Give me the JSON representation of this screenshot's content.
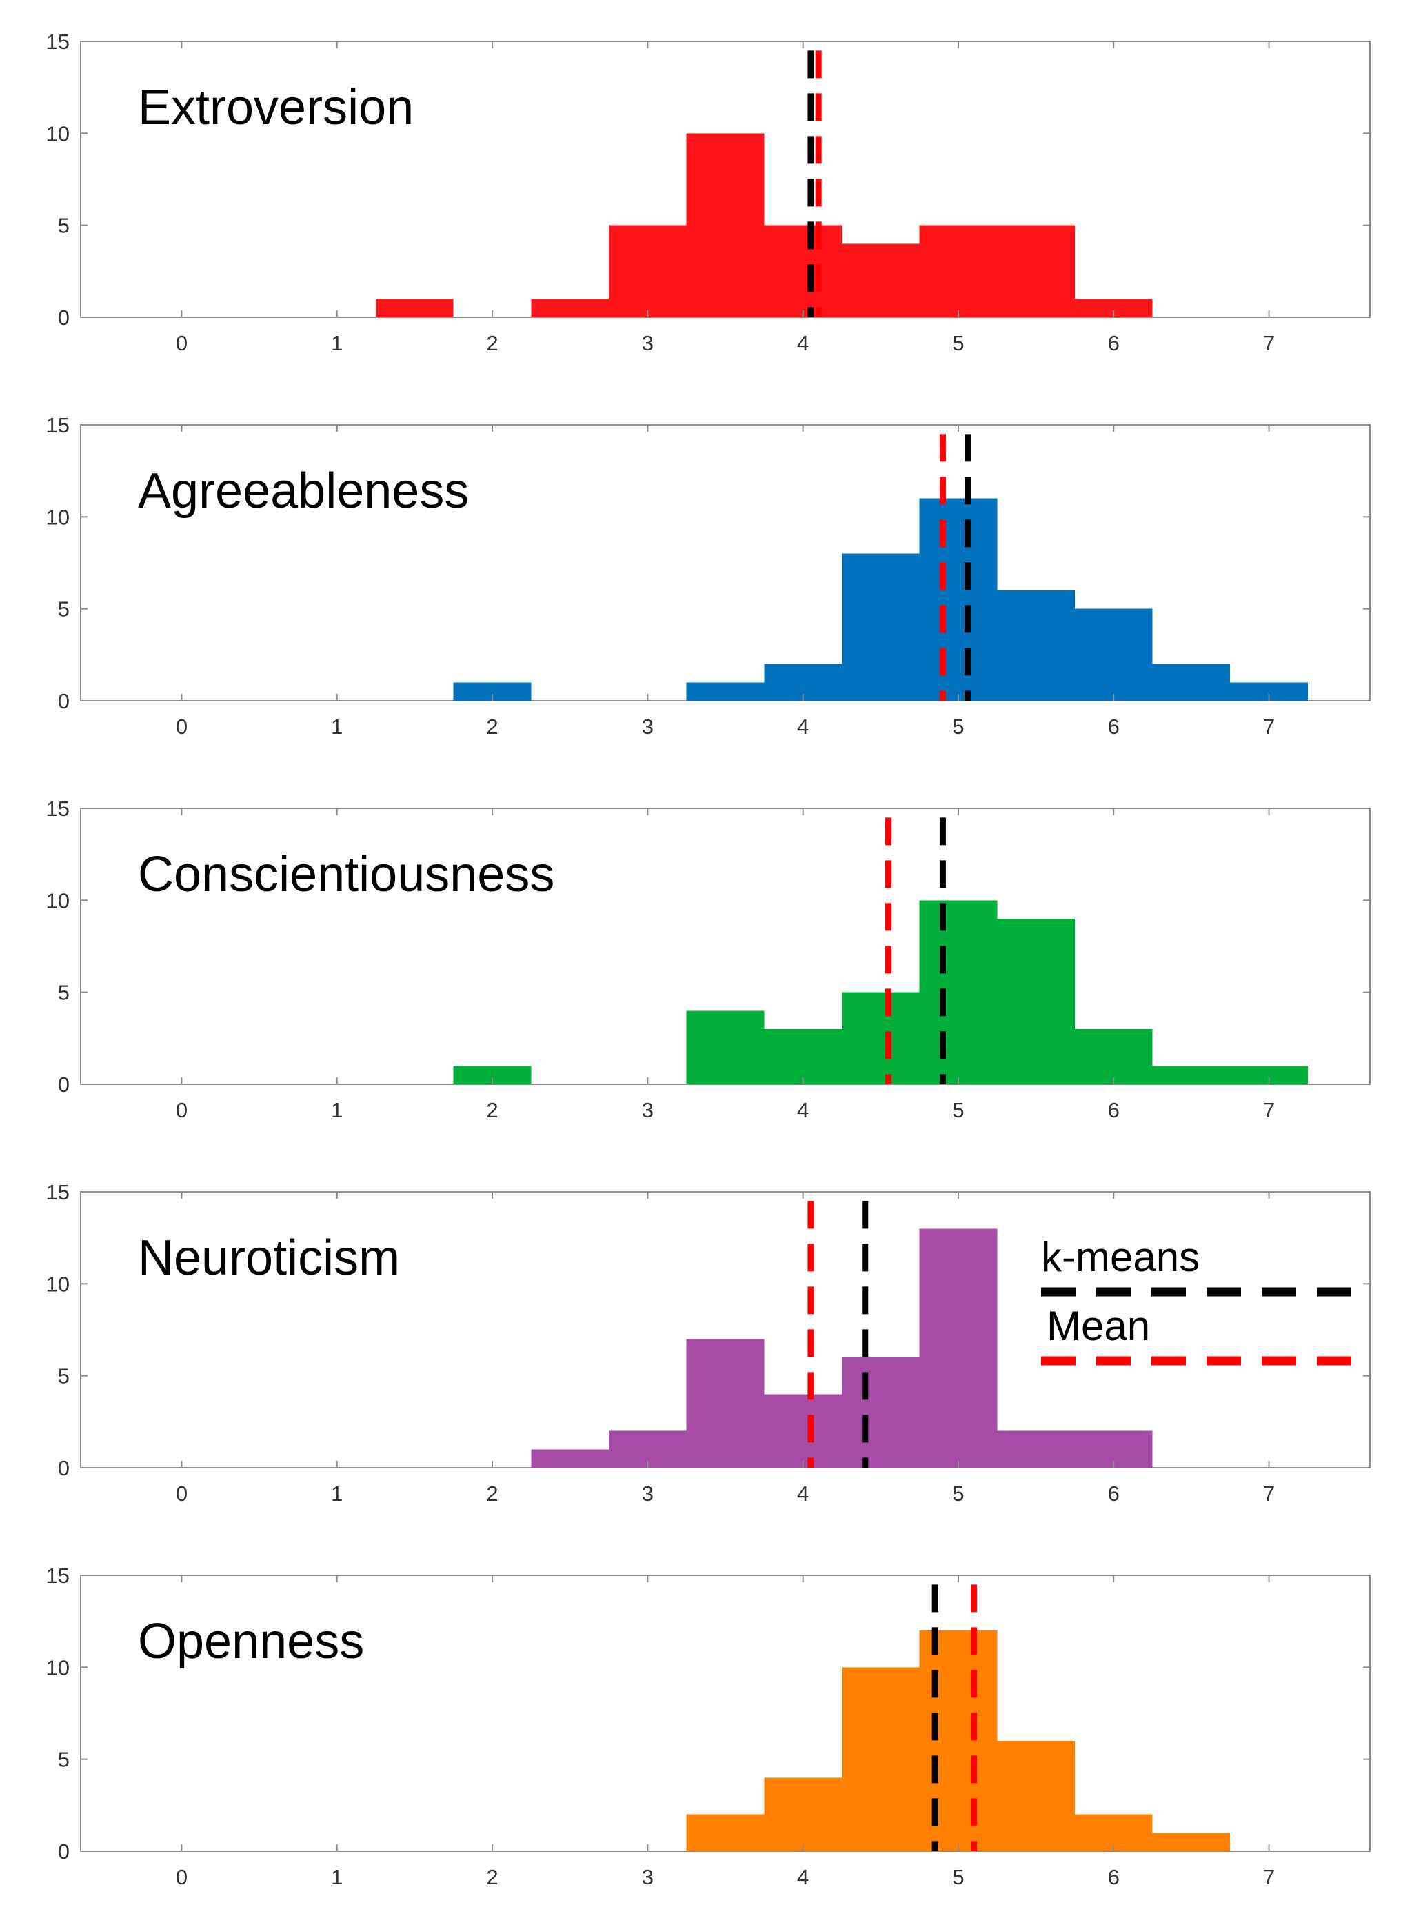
{
  "chart_data": [
    {
      "type": "histogram",
      "title": "Extroversion",
      "color": "#ff1419",
      "bin_width": 0.5,
      "bin_starts": [
        1.25,
        2.25,
        2.75,
        3.25,
        3.75,
        4.25,
        4.75,
        5.25,
        5.75
      ],
      "values": [
        1,
        1,
        5,
        10,
        5,
        4,
        5,
        5,
        1
      ],
      "kmeans": 4.05,
      "mean": 4.1,
      "xlim": [
        -0.65,
        7.65
      ],
      "ylim": [
        0,
        15
      ],
      "xticks": [
        "0",
        "1",
        "2",
        "3",
        "4",
        "5",
        "6",
        "7"
      ],
      "yticks": [
        "0",
        "5",
        "10",
        "15"
      ]
    },
    {
      "type": "histogram",
      "title": "Agreeableness",
      "color": "#0072bd",
      "bin_width": 0.5,
      "bin_starts": [
        1.75,
        3.25,
        3.75,
        4.25,
        4.75,
        5.25,
        5.75,
        6.25,
        6.75
      ],
      "values": [
        1,
        1,
        2,
        8,
        11,
        6,
        5,
        2,
        1
      ],
      "kmeans": 5.06,
      "mean": 4.9,
      "xlim": [
        -0.65,
        7.65
      ],
      "ylim": [
        0,
        15
      ],
      "xticks": [
        "0",
        "1",
        "2",
        "3",
        "4",
        "5",
        "6",
        "7"
      ],
      "yticks": [
        "0",
        "5",
        "10",
        "15"
      ]
    },
    {
      "type": "histogram",
      "title": "Conscientiousness",
      "color": "#00b03b",
      "bin_width": 0.5,
      "bin_starts": [
        1.75,
        3.25,
        3.75,
        4.25,
        4.75,
        5.25,
        5.75,
        6.25,
        6.75
      ],
      "values": [
        1,
        4,
        3,
        5,
        10,
        9,
        3,
        1,
        1
      ],
      "kmeans": 4.9,
      "mean": 4.55,
      "xlim": [
        -0.65,
        7.65
      ],
      "ylim": [
        0,
        15
      ],
      "xticks": [
        "0",
        "1",
        "2",
        "3",
        "4",
        "5",
        "6",
        "7"
      ],
      "yticks": [
        "0",
        "5",
        "10",
        "15"
      ]
    },
    {
      "type": "histogram",
      "title": "Neuroticism",
      "color": "#a64ca6",
      "bin_width": 0.5,
      "bin_starts": [
        2.25,
        2.75,
        3.25,
        3.75,
        4.25,
        4.75,
        5.25,
        5.75
      ],
      "values": [
        1,
        2,
        7,
        4,
        6,
        13,
        2,
        2
      ],
      "kmeans": 4.4,
      "mean": 4.05,
      "xlim": [
        -0.65,
        7.65
      ],
      "ylim": [
        0,
        15
      ],
      "xticks": [
        "0",
        "1",
        "2",
        "3",
        "4",
        "5",
        "6",
        "7"
      ],
      "yticks": [
        "0",
        "5",
        "10",
        "15"
      ],
      "legend": {
        "placement": "right",
        "entries": [
          {
            "label": "k-means",
            "color": "#000000"
          },
          {
            "label": "Mean",
            "color": "#ff0000"
          }
        ]
      }
    },
    {
      "type": "histogram",
      "title": "Openness",
      "color": "#ff8000",
      "bin_width": 0.5,
      "bin_starts": [
        3.25,
        3.75,
        4.25,
        4.75,
        5.25,
        5.75,
        6.25
      ],
      "values": [
        2,
        4,
        10,
        12,
        6,
        2,
        1
      ],
      "kmeans": 4.85,
      "mean": 5.1,
      "xlim": [
        -0.65,
        7.65
      ],
      "ylim": [
        0,
        15
      ],
      "xticks": [
        "0",
        "1",
        "2",
        "3",
        "4",
        "5",
        "6",
        "7"
      ],
      "yticks": [
        "0",
        "5",
        "10",
        "15"
      ]
    }
  ],
  "line_colors": {
    "kmeans": "#000000",
    "mean": "#ff0000"
  }
}
